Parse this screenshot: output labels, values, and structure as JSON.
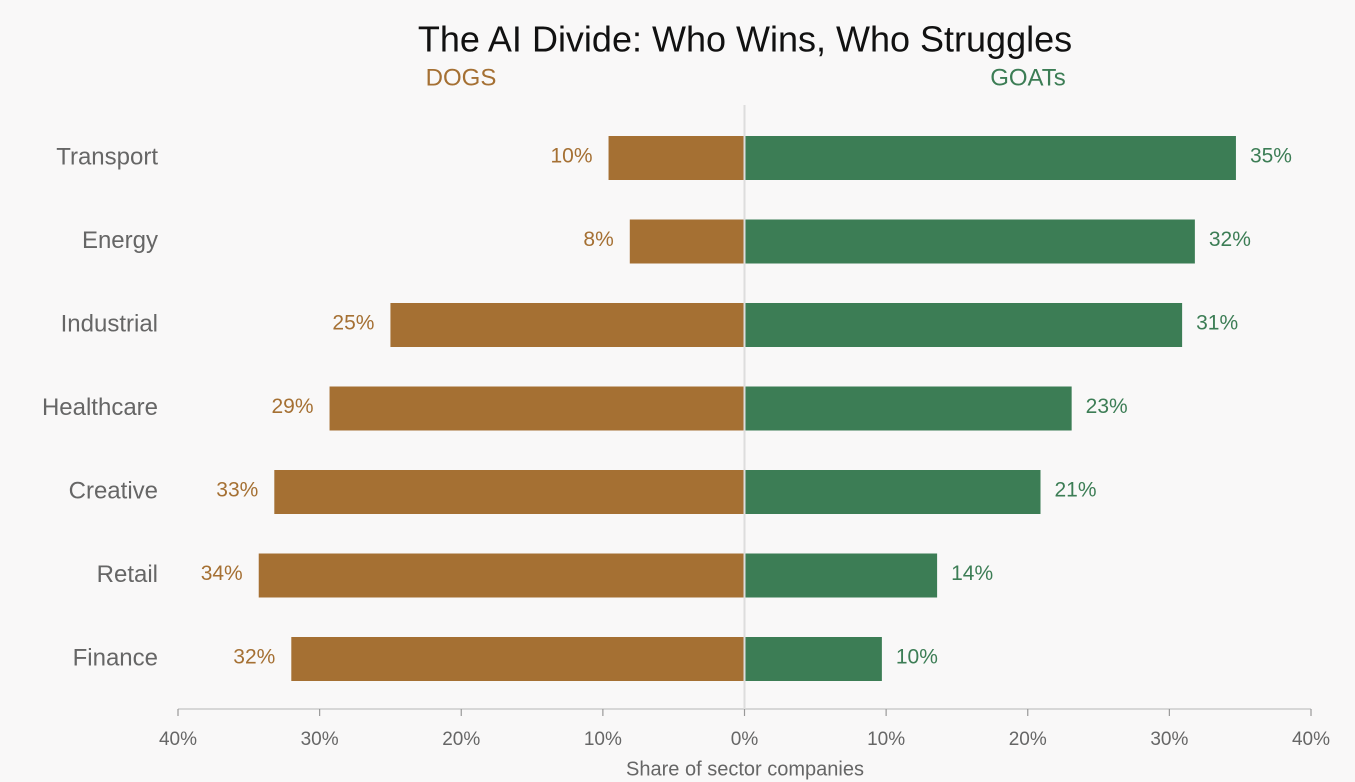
{
  "chart_data": {
    "type": "diverging_bar",
    "title": "The AI Divide: Who Wins, Who Struggles",
    "xlabel": "Share of sector companies",
    "categories": [
      "Transport",
      "Energy",
      "Industrial",
      "Healthcare",
      "Creative",
      "Retail",
      "Finance"
    ],
    "series": [
      {
        "name": "DOGS",
        "color": "#a57033",
        "side": "left",
        "values": [
          9.6,
          8.1,
          25.0,
          29.3,
          33.2,
          34.3,
          32.0
        ],
        "value_labels": [
          "10%",
          "8%",
          "25%",
          "29%",
          "33%",
          "34%",
          "32%"
        ]
      },
      {
        "name": "GOATs",
        "color": "#3c7d55",
        "side": "right",
        "values": [
          34.7,
          31.8,
          30.9,
          23.1,
          20.9,
          13.6,
          9.7
        ],
        "value_labels": [
          "35%",
          "32%",
          "31%",
          "23%",
          "21%",
          "14%",
          "10%"
        ]
      }
    ],
    "xlim": [
      -40,
      40
    ],
    "xticks": [
      {
        "value": -40,
        "label": "40%"
      },
      {
        "value": -30,
        "label": "30%"
      },
      {
        "value": -20,
        "label": "20%"
      },
      {
        "value": -10,
        "label": "10%"
      },
      {
        "value": 0,
        "label": "0%"
      },
      {
        "value": 10,
        "label": "10%"
      },
      {
        "value": 20,
        "label": "20%"
      },
      {
        "value": 30,
        "label": "30%"
      },
      {
        "value": 40,
        "label": "40%"
      }
    ]
  }
}
